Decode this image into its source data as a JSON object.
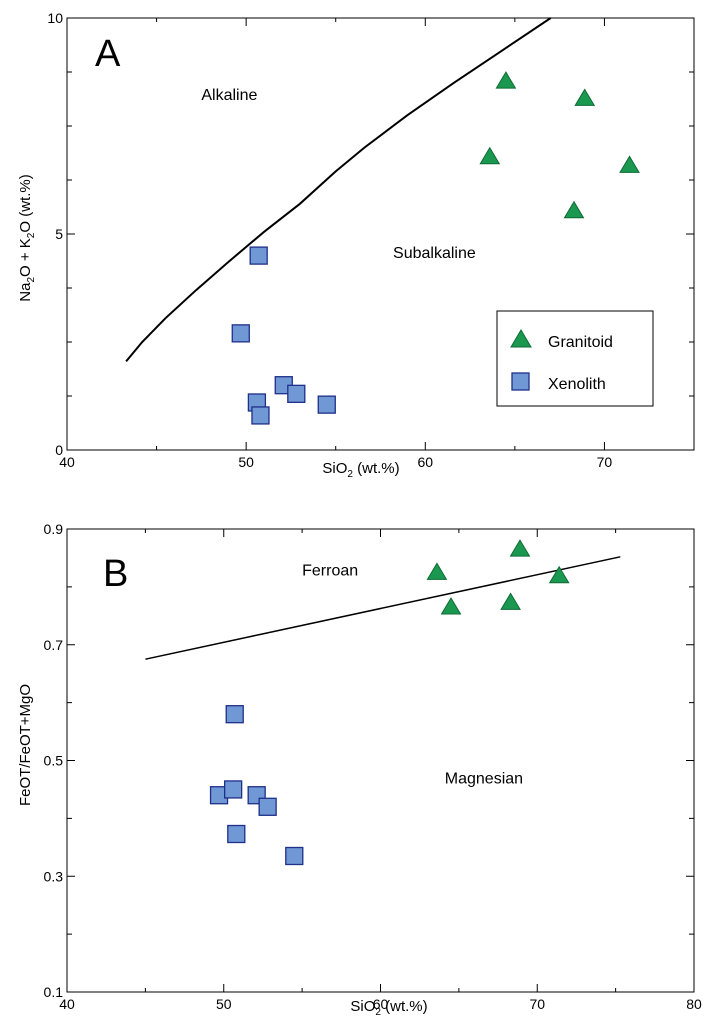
{
  "chart_data": [
    {
      "type": "scatter",
      "panel": "A",
      "xlabel": "SiO2 (wt.%)",
      "ylabel": "Na2O + K2O (wt.%)",
      "xlim": [
        40,
        75
      ],
      "ylim": [
        0,
        10
      ],
      "xticks": [
        40,
        50,
        60,
        70
      ],
      "yticks": [
        0,
        5,
        10
      ],
      "boundary_line": {
        "x": [
          43.3,
          44.2,
          45.5,
          47.2,
          49.0,
          51.0,
          53.0,
          55.0,
          56.6,
          59.0,
          61.6,
          64.3,
          67.0
        ],
        "y": [
          2.05,
          2.5,
          3.05,
          3.7,
          4.35,
          5.05,
          5.7,
          6.45,
          7.0,
          7.75,
          8.5,
          9.25,
          10.0
        ]
      },
      "regions": [
        {
          "label": "Alkaline",
          "x": 47.5,
          "y": 8.1
        },
        {
          "label": "Subalkaline",
          "x": 58.2,
          "y": 4.45
        }
      ],
      "series": [
        {
          "name": "Granitoid",
          "marker": "triangle",
          "color": "#1a9850",
          "x": [
            64.5,
            68.9,
            63.6,
            71.4,
            68.3
          ],
          "y": [
            8.55,
            8.15,
            6.8,
            6.6,
            5.55
          ]
        },
        {
          "name": "Xenolith",
          "marker": "square",
          "color": "#6f98d4",
          "x": [
            50.7,
            49.7,
            52.1,
            52.8,
            50.6,
            50.8,
            54.5
          ],
          "y": [
            4.5,
            2.7,
            1.5,
            1.3,
            1.1,
            0.8,
            1.05
          ]
        }
      ],
      "legend": {
        "placement": "bottom-right",
        "entries": [
          "Granitoid",
          "Xenolith"
        ]
      },
      "grid": false
    },
    {
      "type": "scatter",
      "panel": "B",
      "xlabel": "SiO2 (wt.%)",
      "ylabel": "FeOT/FeOT+MgO",
      "xlim": [
        40,
        80
      ],
      "ylim": [
        0.1,
        0.9
      ],
      "xticks": [
        40,
        50,
        60,
        70,
        80
      ],
      "yticks": [
        0.1,
        0.3,
        0.5,
        0.7,
        0.9
      ],
      "boundary_line": {
        "x": [
          45,
          75.3
        ],
        "y": [
          0.675,
          0.852
        ]
      },
      "regions": [
        {
          "label": "Ferroan",
          "x": 55.0,
          "y": 0.82
        },
        {
          "label": "Magnesian",
          "x": 64.1,
          "y": 0.46
        }
      ],
      "series": [
        {
          "name": "Granitoid",
          "marker": "triangle",
          "color": "#1a9850",
          "x": [
            68.9,
            63.6,
            71.4,
            68.3,
            64.5
          ],
          "y": [
            0.866,
            0.826,
            0.82,
            0.774,
            0.766
          ]
        },
        {
          "name": "Xenolith",
          "marker": "square",
          "color": "#6f98d4",
          "x": [
            50.7,
            49.7,
            50.6,
            52.1,
            52.8,
            50.8,
            54.5
          ],
          "y": [
            0.58,
            0.44,
            0.45,
            0.44,
            0.42,
            0.373,
            0.335
          ]
        }
      ],
      "grid": false
    }
  ]
}
